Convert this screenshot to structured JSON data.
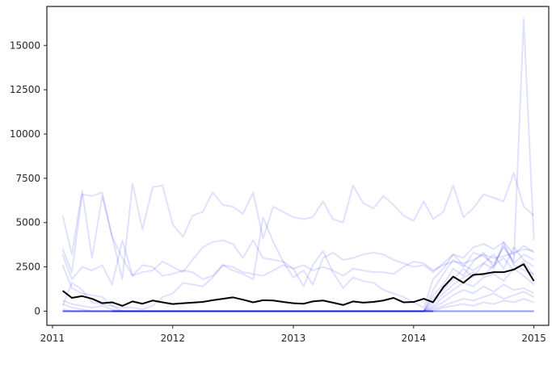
{
  "chart_data": {
    "type": "line",
    "title": "",
    "xlabel": "",
    "ylabel": "",
    "x_start": "2011-02",
    "x_end": "2015-01",
    "xlim": [
      "2010-12-15",
      "2015-02-15"
    ],
    "ylim": [
      -800,
      17200
    ],
    "x_ticks": [
      {
        "date": "2011-01-01",
        "label": "2011"
      },
      {
        "date": "2012-01-01",
        "label": "2012"
      },
      {
        "date": "2013-01-01",
        "label": "2013"
      },
      {
        "date": "2014-01-01",
        "label": "2014"
      },
      {
        "date": "2015-01-01",
        "label": "2015"
      }
    ],
    "y_ticks": [
      {
        "value": 0,
        "label": "0"
      },
      {
        "value": 2500,
        "label": "2500"
      },
      {
        "value": 5000,
        "label": "5000"
      },
      {
        "value": 7500,
        "label": "7500"
      },
      {
        "value": 10000,
        "label": "10000"
      },
      {
        "value": 12500,
        "label": "12500"
      },
      {
        "value": 15000,
        "label": "15000"
      }
    ],
    "grid": false,
    "legend": "none",
    "colors": {
      "individual": "#0000ff",
      "mean": "#000000",
      "axes": "#262626"
    },
    "individual_opacity": 0.12,
    "mean_series": [
      1150,
      750,
      850,
      700,
      450,
      500,
      300,
      550,
      420,
      600,
      500,
      400,
      450,
      480,
      520,
      620,
      700,
      780,
      650,
      500,
      620,
      600,
      520,
      450,
      420,
      550,
      600,
      480,
      350,
      550,
      480,
      520,
      600,
      750,
      500,
      520,
      700,
      500,
      1350,
      1950,
      1600,
      2050,
      2100,
      2200,
      2200,
      2350,
      2650,
      1700
    ],
    "series": [
      {
        "values": [
          5400,
          3200,
          6800,
          3000,
          6500,
          4200,
          1800,
          7200,
          4600,
          7000,
          7100,
          4900,
          4200,
          5400,
          5600,
          6700,
          6000,
          5900,
          5500,
          6700,
          4100,
          5900,
          5600,
          5300,
          5200,
          5300,
          6200,
          5200,
          5000,
          7100,
          6100,
          5800,
          6500,
          6000,
          5400,
          5100,
          6200,
          5200,
          5600,
          7100,
          5300,
          5800,
          6600,
          6400,
          6200,
          7800,
          5900,
          5400
        ]
      },
      {
        "values": [
          3500,
          2200,
          6600,
          6500,
          6700,
          4200,
          3000,
          2000,
          2200,
          2300,
          2800,
          2500,
          2200,
          2900,
          3600,
          3900,
          4000,
          3800,
          3000,
          4000,
          3000,
          2900,
          2800,
          2400,
          2600,
          2300,
          2500,
          2300,
          2000,
          2400,
          2300,
          2200,
          2200,
          2100,
          2500,
          2800,
          2700,
          2300,
          2600,
          2800,
          2700,
          2900,
          3200,
          3000,
          3100,
          3300,
          3500,
          3400
        ]
      },
      {
        "values": [
          3200,
          1800,
          2500,
          2300,
          2600,
          1500,
          4000,
          2000,
          2600,
          2500,
          2000,
          2100,
          2300,
          2200,
          1800,
          2000,
          2600,
          2300,
          2100,
          1800,
          5300,
          3900,
          2800,
          1900,
          2300,
          1500,
          3000,
          3300,
          2900,
          3000,
          3200,
          3300,
          3200,
          2900,
          2700,
          2500,
          2600,
          2200,
          2700,
          3200,
          3000,
          3600,
          3800,
          3500,
          3900,
          3200,
          3700,
          3300
        ]
      },
      {
        "values": [
          300,
          1600,
          1200,
          500,
          400,
          300,
          200,
          200,
          100,
          300,
          800,
          1000,
          1600,
          1500,
          1400,
          1900,
          2600,
          2500,
          2200,
          2100,
          2000,
          2300,
          2600,
          2400,
          1400,
          2600,
          3400,
          2200,
          1300,
          1900,
          1700,
          1600,
          1200,
          1000,
          800,
          500,
          200,
          1800,
          2400,
          3200,
          2600,
          2300,
          2700,
          2400,
          3900,
          2600,
          2300,
          2100
        ]
      },
      {
        "values": [
          2600,
          1300,
          1000,
          900,
          800,
          300,
          0,
          0,
          0,
          0,
          0,
          0,
          0,
          0,
          0,
          0,
          0,
          0,
          0,
          0,
          0,
          0,
          0,
          0,
          0,
          0,
          0,
          0,
          0,
          0,
          0,
          0,
          0,
          0,
          0,
          0,
          0,
          1200,
          2100,
          2900,
          2500,
          3300,
          3100,
          2700,
          3600,
          2800,
          16500,
          4000
        ]
      },
      {
        "values": [
          600,
          400,
          300,
          200,
          300,
          100,
          0,
          0,
          0,
          0,
          0,
          0,
          0,
          0,
          0,
          0,
          0,
          0,
          0,
          0,
          0,
          0,
          0,
          0,
          0,
          0,
          0,
          0,
          0,
          0,
          0,
          0,
          0,
          0,
          0,
          0,
          0,
          900,
          1500,
          2400,
          2000,
          2800,
          3300,
          2500,
          3700,
          2700,
          3200,
          2900
        ]
      },
      {
        "values": [
          400,
          200,
          100,
          0,
          0,
          0,
          0,
          0,
          0,
          0,
          0,
          0,
          0,
          0,
          0,
          0,
          0,
          0,
          0,
          0,
          0,
          0,
          0,
          0,
          0,
          0,
          0,
          0,
          0,
          0,
          0,
          0,
          0,
          0,
          0,
          0,
          0,
          700,
          1200,
          1800,
          2400,
          1900,
          2700,
          3200,
          2400,
          3600,
          2900,
          2500
        ]
      },
      {
        "values": [
          100,
          0,
          0,
          0,
          0,
          0,
          0,
          0,
          0,
          0,
          0,
          0,
          0,
          0,
          0,
          0,
          0,
          0,
          0,
          0,
          0,
          0,
          0,
          0,
          0,
          0,
          0,
          0,
          0,
          0,
          0,
          0,
          0,
          0,
          0,
          0,
          0,
          500,
          1000,
          1500,
          1900,
          2200,
          2000,
          2600,
          3000,
          2300,
          2800,
          2000
        ]
      },
      {
        "values": [
          0,
          0,
          0,
          0,
          0,
          0,
          0,
          0,
          0,
          0,
          0,
          0,
          0,
          0,
          0,
          0,
          0,
          0,
          0,
          0,
          0,
          0,
          0,
          0,
          0,
          0,
          0,
          0,
          0,
          0,
          0,
          0,
          0,
          0,
          0,
          0,
          0,
          300,
          800,
          1200,
          1600,
          1400,
          1900,
          2100,
          1700,
          2400,
          2000,
          1500
        ]
      },
      {
        "values": [
          0,
          0,
          0,
          0,
          0,
          0,
          0,
          0,
          0,
          0,
          0,
          0,
          0,
          0,
          0,
          0,
          0,
          0,
          0,
          0,
          0,
          0,
          0,
          0,
          0,
          0,
          0,
          0,
          0,
          0,
          0,
          0,
          0,
          0,
          0,
          0,
          0,
          200,
          500,
          900,
          1200,
          1000,
          1400,
          1100,
          1500,
          1200,
          1300,
          1000
        ]
      },
      {
        "values": [
          0,
          0,
          0,
          0,
          0,
          0,
          0,
          0,
          0,
          0,
          0,
          0,
          0,
          0,
          0,
          0,
          0,
          0,
          0,
          0,
          0,
          0,
          0,
          0,
          0,
          0,
          0,
          0,
          0,
          0,
          0,
          0,
          0,
          0,
          0,
          0,
          0,
          100,
          300,
          500,
          700,
          600,
          800,
          1000,
          700,
          900,
          1100,
          800
        ]
      },
      {
        "values": [
          0,
          0,
          0,
          0,
          0,
          0,
          0,
          0,
          0,
          0,
          0,
          0,
          0,
          0,
          0,
          0,
          0,
          0,
          0,
          0,
          0,
          0,
          0,
          0,
          0,
          0,
          0,
          0,
          0,
          0,
          0,
          0,
          0,
          0,
          0,
          0,
          0,
          0,
          200,
          300,
          400,
          300,
          500,
          400,
          600,
          500,
          700,
          500
        ]
      },
      {
        "values": [
          0,
          0,
          0,
          0,
          0,
          0,
          0,
          0,
          0,
          0,
          0,
          0,
          0,
          0,
          0,
          0,
          0,
          0,
          0,
          0,
          0,
          0,
          0,
          0,
          0,
          0,
          0,
          0,
          0,
          0,
          0,
          0,
          0,
          0,
          0,
          0,
          0,
          0,
          0,
          0,
          0,
          0,
          0,
          0,
          0,
          0,
          0,
          0
        ]
      },
      {
        "values": [
          0,
          0,
          0,
          0,
          0,
          0,
          0,
          0,
          0,
          0,
          0,
          0,
          0,
          0,
          0,
          0,
          0,
          0,
          0,
          0,
          0,
          0,
          0,
          0,
          0,
          0,
          0,
          0,
          0,
          0,
          0,
          0,
          0,
          0,
          0,
          0,
          0,
          0,
          0,
          0,
          0,
          0,
          0,
          0,
          0,
          0,
          0,
          0
        ]
      },
      {
        "values": [
          0,
          0,
          0,
          0,
          0,
          0,
          0,
          0,
          0,
          0,
          0,
          0,
          0,
          0,
          0,
          0,
          0,
          0,
          0,
          0,
          0,
          0,
          0,
          0,
          0,
          0,
          0,
          0,
          0,
          0,
          0,
          0,
          0,
          0,
          0,
          0,
          0,
          0,
          0,
          0,
          0,
          0,
          0,
          0,
          0,
          0,
          0,
          0
        ]
      },
      {
        "values": [
          0,
          0,
          0,
          0,
          0,
          0,
          0,
          0,
          0,
          0,
          0,
          0,
          0,
          0,
          0,
          0,
          0,
          0,
          0,
          0,
          0,
          0,
          0,
          0,
          0,
          0,
          0,
          0,
          0,
          0,
          0,
          0,
          0,
          0,
          0,
          0,
          0,
          0,
          0,
          0,
          0,
          0,
          0,
          0,
          0,
          0,
          0,
          0
        ]
      }
    ]
  }
}
